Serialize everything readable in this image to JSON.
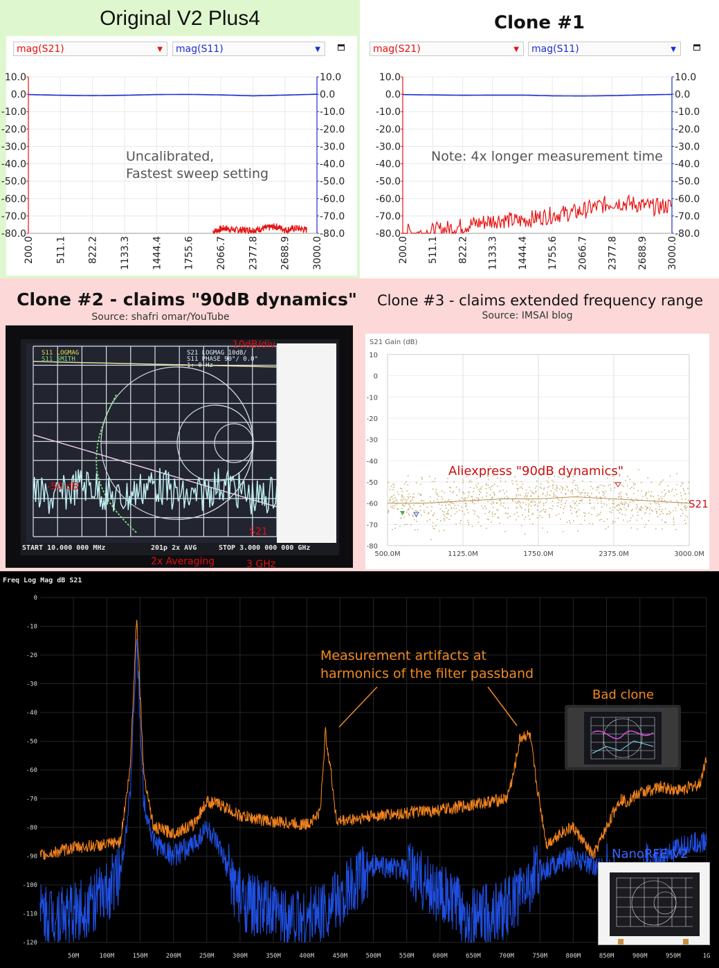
{
  "panels": {
    "original": {
      "title": "Original V2 Plus4",
      "trace1": "mag(S21)",
      "trace2": "mag(S11)",
      "note_line1": "Uncalibrated,",
      "note_line2": "Fastest sweep setting"
    },
    "clone1": {
      "title": "Clone #1",
      "trace1": "mag(S21)",
      "trace2": "mag(S11)",
      "note": "Note: 4x longer measurement time"
    },
    "clone2": {
      "title": "Clone #2 - claims \"90dB dynamics\"",
      "source": "Source: shafri omar/YouTube",
      "label_div": "10dB/div",
      "label_level": "-50 dB",
      "label_trace": "S21",
      "label_avg": "2x Averaging",
      "label_freq": "3 GHz",
      "header_s11": "S11 LOGMAG",
      "header_s11b": "S11 SMITH",
      "header_s21a": "S21 LOGMAG 10dB/",
      "header_s21b": "S11 PHASE 90°/ 0.0°",
      "header_marker": "1: 0 Hz",
      "footer_start": "START   10.000 000 MHz",
      "footer_mid": "201p  2x AVG",
      "footer_stop": "STOP  3.000 000 000 GHz"
    },
    "clone3": {
      "title": "Clone #3 - claims extended frequency range",
      "source": "Source: IMSAI blog",
      "annotation": "Aliexpress \"90dB dynamics\"",
      "trace_label": "S21"
    },
    "bottom": {
      "annotation_line1": "Measurement artifacts at",
      "annotation_line2": "harmonics of the filter passband",
      "label_bad": "Bad clone",
      "label_good": "NanoRFE V2"
    }
  },
  "chart_data": [
    {
      "type": "line",
      "title": "",
      "x_ticks": [
        "200.0",
        "511.1",
        "822.2",
        "1133.3",
        "1444.4",
        "1755.6",
        "2066.7",
        "2377.8",
        "2688.9",
        "3000.0"
      ],
      "y_ticks": [
        "10.0",
        "0.0",
        "-10.0",
        "-20.0",
        "-30.0",
        "-40.0",
        "-50.0",
        "-60.0",
        "-70.0",
        "-80.0"
      ],
      "xlim": [
        200,
        3000
      ],
      "ylim": [
        -80,
        10
      ],
      "series": [
        {
          "name": "mag(S21)",
          "color": "#e81010",
          "x": [
            1990,
            2100,
            2200,
            2300,
            2400,
            2500,
            2600,
            2700,
            2800,
            2900
          ],
          "y": [
            -79,
            -77,
            -78,
            -78,
            -78,
            -77,
            -76,
            -78,
            -77,
            -78
          ]
        },
        {
          "name": "mag(S11)",
          "color": "#1a2fd0",
          "x": [
            200,
            511.1,
            822.2,
            1133.3,
            1444.4,
            1755.6,
            2066.7,
            2377.8,
            2688.9,
            3000
          ],
          "y": [
            -0.2,
            -0.6,
            -0.8,
            -0.6,
            -0.2,
            -0.1,
            -0.4,
            -0.9,
            -0.5,
            0.0
          ]
        }
      ]
    },
    {
      "type": "line",
      "title": "",
      "x_ticks": [
        "200.0",
        "511.1",
        "822.2",
        "1133.3",
        "1444.4",
        "1755.6",
        "2066.7",
        "2377.8",
        "2688.9",
        "3000.0"
      ],
      "y_ticks": [
        "10.0",
        "0.0",
        "-10.0",
        "-20.0",
        "-30.0",
        "-40.0",
        "-50.0",
        "-60.0",
        "-70.0",
        "-80.0"
      ],
      "xlim": [
        200,
        3000
      ],
      "ylim": [
        -80,
        10
      ],
      "series": [
        {
          "name": "mag(S21)",
          "color": "#e81010",
          "x": [
            200,
            400,
            600,
            800,
            1000,
            1200,
            1400,
            1600,
            1800,
            2000,
            2200,
            2400,
            2600,
            2800,
            3000
          ],
          "y": [
            -79,
            -80,
            -78,
            -76,
            -74,
            -72,
            -73,
            -71,
            -69,
            -68,
            -65,
            -62,
            -63,
            -65,
            -64
          ]
        },
        {
          "name": "mag(S11)",
          "color": "#1a2fd0",
          "x": [
            200,
            511.1,
            822.2,
            1133.3,
            1444.4,
            1755.6,
            2066.7,
            2377.8,
            2688.9,
            3000
          ],
          "y": [
            -0.2,
            -0.4,
            -0.6,
            -0.5,
            -0.5,
            -0.9,
            -1.0,
            -0.8,
            -0.4,
            -0.1
          ]
        }
      ]
    },
    {
      "type": "scatter",
      "title": "S21 Gain (dB)",
      "x_ticks": [
        "500.0M",
        "1125.0M",
        "1750.0M",
        "2375.0M",
        "3000.0M"
      ],
      "y_ticks": [
        "10",
        "0",
        "-10",
        "-20",
        "-30",
        "-40",
        "-50",
        "-60",
        "-70",
        "-80"
      ],
      "xlim": [
        500,
        3000
      ],
      "ylim": [
        -80,
        10
      ],
      "series": [
        {
          "name": "S21",
          "color": "#c8b078",
          "x": [
            500,
            800,
            1125,
            1450,
            1750,
            2050,
            2375,
            2700,
            3000
          ],
          "y": [
            -60,
            -60,
            -59,
            -58,
            -58,
            -57,
            -58,
            -59,
            -60
          ]
        }
      ]
    },
    {
      "type": "line",
      "title": "Freq Log Mag dB S21",
      "x_ticks": [
        "50M",
        "100M",
        "150M",
        "200M",
        "250M",
        "300M",
        "350M",
        "400M",
        "450M",
        "500M",
        "550M",
        "600M",
        "650M",
        "700M",
        "750M",
        "800M",
        "850M",
        "900M",
        "950M",
        "1G"
      ],
      "y_ticks": [
        "0",
        "-10",
        "-20",
        "-30",
        "-40",
        "-50",
        "-60",
        "-70",
        "-80",
        "-90",
        "-100",
        "-110",
        "-120"
      ],
      "xlim": [
        0,
        1000
      ],
      "ylim": [
        -120,
        0
      ],
      "series": [
        {
          "name": "Bad clone",
          "color": "#f0821e",
          "x": [
            0,
            50,
            100,
            120,
            135,
            145,
            155,
            170,
            200,
            230,
            250,
            270,
            300,
            350,
            400,
            420,
            428,
            435,
            445,
            500,
            600,
            700,
            710,
            720,
            727,
            735,
            745,
            760,
            780,
            800,
            830,
            850,
            870,
            880,
            900,
            930,
            960,
            990,
            1000
          ],
          "y": [
            -90,
            -87,
            -86,
            -85,
            -60,
            -6,
            -60,
            -80,
            -82,
            -79,
            -71,
            -72,
            -76,
            -78,
            -79,
            -75,
            -47,
            -58,
            -78,
            -76,
            -74,
            -70,
            -62,
            -49,
            -48,
            -48,
            -65,
            -86,
            -82,
            -80,
            -90,
            -80,
            -70,
            -71,
            -68,
            -66,
            -67,
            -65,
            -55
          ]
        },
        {
          "name": "NanoRFE V2",
          "color": "#1f4fe0",
          "x": [
            0,
            50,
            100,
            120,
            135,
            145,
            155,
            170,
            200,
            230,
            250,
            270,
            300,
            350,
            400,
            450,
            500,
            550,
            600,
            650,
            700,
            750,
            800,
            850,
            880,
            900,
            920,
            940,
            970,
            1000
          ],
          "y": [
            -110,
            -110,
            -103,
            -95,
            -70,
            -15,
            -70,
            -85,
            -90,
            -86,
            -80,
            -88,
            -105,
            -110,
            -112,
            -105,
            -93,
            -95,
            -103,
            -112,
            -108,
            -95,
            -90,
            -95,
            -105,
            -100,
            -92,
            -90,
            -86,
            -85
          ]
        }
      ]
    }
  ]
}
